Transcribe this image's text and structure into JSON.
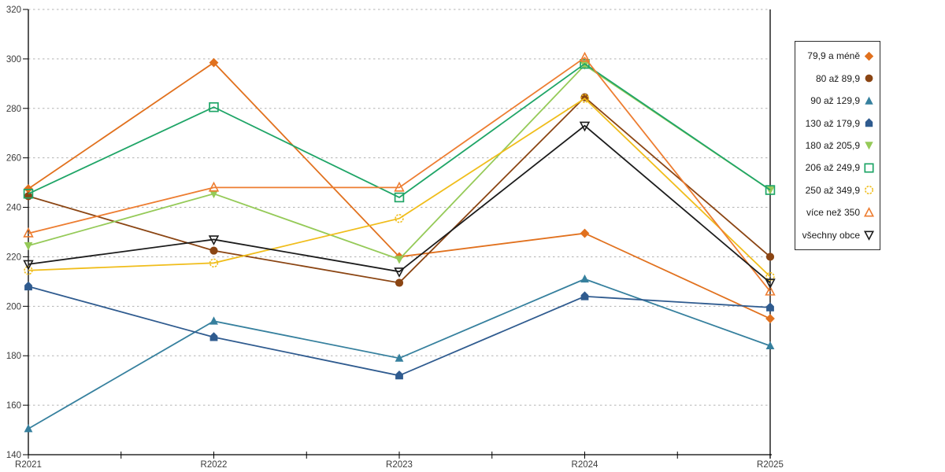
{
  "chart_data": {
    "type": "line",
    "title": "",
    "xlabel": "",
    "ylabel": "",
    "x": [
      "R2021",
      "R2022",
      "R2023",
      "R2024",
      "R2025"
    ],
    "ylim": [
      140,
      320
    ],
    "ytick_step": 20,
    "grid": true,
    "legend_position": "right",
    "background": "#ffffff",
    "gridline_color": "#b3b3b3",
    "axis_color": "#000000",
    "series": [
      {
        "name": "79,9 a méně",
        "color": "#e1711e",
        "marker": "diamond",
        "marker_fill": "solid",
        "values": [
          247.5,
          298.5,
          220,
          229.5,
          195
        ]
      },
      {
        "name": "80 až 89,9",
        "color": "#8b4513",
        "marker": "circle",
        "marker_fill": "solid",
        "values": [
          244.5,
          222.5,
          209.5,
          284.5,
          220
        ]
      },
      {
        "name": "90 až 129,9",
        "color": "#36809e",
        "marker": "triangle-up",
        "marker_fill": "solid",
        "values": [
          150.5,
          194,
          179,
          211,
          184
        ]
      },
      {
        "name": "130 až 179,9",
        "color": "#2f5b8f",
        "marker": "pentagon",
        "marker_fill": "solid",
        "values": [
          208,
          187.5,
          172,
          204,
          199.5
        ]
      },
      {
        "name": "180 až 205,9",
        "color": "#95ca58",
        "marker": "triangle-down",
        "marker_fill": "solid",
        "values": [
          224.5,
          245.5,
          219,
          297.5,
          247
        ]
      },
      {
        "name": "206 až 249,9",
        "color": "#1fa567",
        "marker": "square",
        "marker_fill": "open",
        "values": [
          245.5,
          280.5,
          244,
          298,
          247
        ]
      },
      {
        "name": "250 až 349,9",
        "color": "#f0bd1b",
        "marker": "circle-open",
        "marker_fill": "open",
        "values": [
          214.5,
          217.5,
          235.5,
          284,
          212
        ]
      },
      {
        "name": "více než 350",
        "color": "#ed7d31",
        "marker": "triangle-up",
        "marker_fill": "open",
        "values": [
          229.5,
          248,
          248,
          300.5,
          206
        ]
      },
      {
        "name": "všechny obce",
        "color": "#1c1c1c",
        "marker": "triangle-down",
        "marker_fill": "open",
        "values": [
          217,
          227,
          214,
          273,
          209.5
        ]
      }
    ]
  }
}
